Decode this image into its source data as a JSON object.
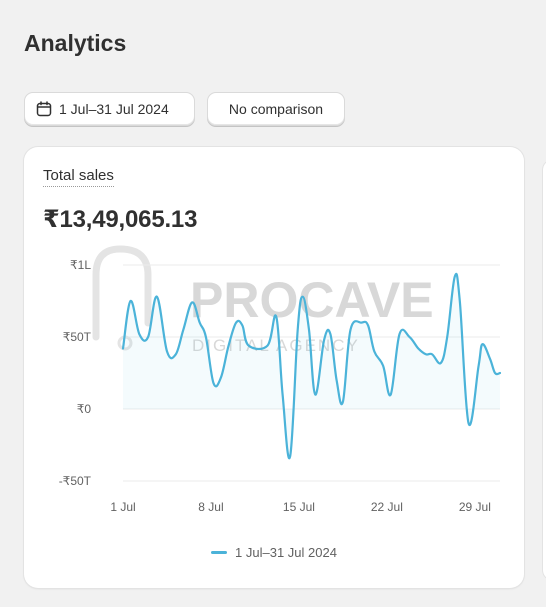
{
  "page": {
    "title": "Analytics"
  },
  "filters": {
    "date_range_label": "1 Jul–31 Jul 2024",
    "comparison_label": "No comparison"
  },
  "card": {
    "metric_label": "Total sales",
    "metric_value": "₹13,49,065.13"
  },
  "watermark": {
    "brand": "PROCAVE",
    "tagline": "DIGITAL AGENCY"
  },
  "colors": {
    "series": "#4bb3d9",
    "grid": "#ebebeb",
    "text": "#303030",
    "muted": "#616161"
  },
  "chart_data": {
    "type": "line",
    "title": "",
    "xlabel": "",
    "ylabel": "",
    "y_ticks": [
      {
        "value": 100000,
        "label": "₹1L"
      },
      {
        "value": 50000,
        "label": "₹50T"
      },
      {
        "value": 0,
        "label": "₹0"
      },
      {
        "value": -50000,
        "label": "-₹50T"
      }
    ],
    "ylim": [
      -50000,
      100000
    ],
    "x_ticks": [
      {
        "day": 1,
        "label": "1 Jul"
      },
      {
        "day": 8,
        "label": "8 Jul"
      },
      {
        "day": 15,
        "label": "15 Jul"
      },
      {
        "day": 22,
        "label": "22 Jul"
      },
      {
        "day": 29,
        "label": "29 Jul"
      }
    ],
    "xlim": [
      1,
      31
    ],
    "grid": true,
    "legend_position": "bottom",
    "series": [
      {
        "name": "1 Jul–31 Jul 2024",
        "points": [
          [
            1,
            42000
          ],
          [
            1.6,
            75000
          ],
          [
            2.3,
            52000
          ],
          [
            3,
            50000
          ],
          [
            3.7,
            78000
          ],
          [
            4.5,
            40000
          ],
          [
            5.2,
            38000
          ],
          [
            5.8,
            55000
          ],
          [
            6.5,
            74000
          ],
          [
            7.1,
            60000
          ],
          [
            7.6,
            50000
          ],
          [
            8.2,
            18000
          ],
          [
            8.8,
            22000
          ],
          [
            9.4,
            44000
          ],
          [
            10,
            60000
          ],
          [
            10.5,
            58000
          ],
          [
            11,
            44000
          ],
          [
            12.5,
            44000
          ],
          [
            13.2,
            64000
          ],
          [
            13.7,
            10000
          ],
          [
            14.3,
            -33000
          ],
          [
            14.9,
            55000
          ],
          [
            15.3,
            78000
          ],
          [
            15.8,
            55000
          ],
          [
            16.3,
            10000
          ],
          [
            17,
            48000
          ],
          [
            17.5,
            52000
          ],
          [
            18,
            20000
          ],
          [
            18.5,
            5000
          ],
          [
            19.1,
            55000
          ],
          [
            20,
            60000
          ],
          [
            20.5,
            58000
          ],
          [
            21,
            40000
          ],
          [
            21.7,
            30000
          ],
          [
            22.3,
            10000
          ],
          [
            23,
            52000
          ],
          [
            23.8,
            50000
          ],
          [
            24.5,
            42000
          ],
          [
            25.1,
            38000
          ],
          [
            25.6,
            38000
          ],
          [
            26.3,
            32000
          ],
          [
            26.8,
            50000
          ],
          [
            27.4,
            92000
          ],
          [
            27.8,
            75000
          ],
          [
            28.5,
            -10000
          ],
          [
            29.3,
            30000
          ],
          [
            29.6,
            45000
          ],
          [
            30.2,
            35000
          ],
          [
            30.6,
            25000
          ],
          [
            31,
            25000
          ]
        ]
      }
    ]
  }
}
